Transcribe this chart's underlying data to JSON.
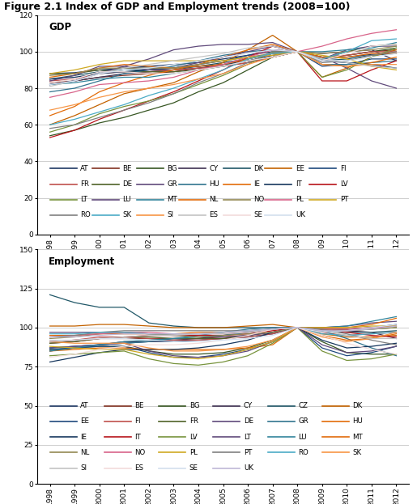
{
  "title": "Figure 2.1 Index of GDP and Employment trends (2008=100)",
  "years": [
    1998,
    1999,
    2000,
    2001,
    2002,
    2003,
    2004,
    2005,
    2006,
    2007,
    2008,
    2009,
    2010,
    2011,
    2012
  ],
  "gdp_label": "GDP",
  "emp_label": "Employment",
  "gdp_ylim": [
    0,
    120
  ],
  "gdp_yticks": [
    0,
    20,
    40,
    60,
    80,
    100,
    120
  ],
  "emp_ylim": [
    0,
    150
  ],
  "emp_yticks": [
    0,
    25,
    50,
    75,
    100,
    125,
    150
  ],
  "gdp_series": {
    "AT": {
      "color": "#1F3864",
      "data": [
        88,
        88.5,
        90,
        91,
        92,
        93,
        94,
        96,
        98,
        100,
        100,
        96,
        97,
        98.5,
        99
      ]
    },
    "BE": {
      "color": "#833223",
      "data": [
        83,
        84,
        86,
        87,
        88,
        89,
        91,
        92,
        94,
        97,
        100,
        97,
        98,
        100,
        101
      ]
    },
    "BG": {
      "color": "#375623",
      "data": [
        54,
        57,
        61,
        64,
        68,
        72,
        78,
        83,
        90,
        97,
        100,
        97,
        98,
        100,
        102
      ]
    },
    "CY": {
      "color": "#403152",
      "data": [
        82,
        84,
        86,
        88,
        89,
        90,
        91,
        93,
        95,
        98,
        100,
        99,
        100,
        101,
        95
      ]
    },
    "DK": {
      "color": "#215868",
      "data": [
        85,
        87,
        89,
        90,
        90,
        90,
        92,
        94,
        96,
        99,
        100,
        95,
        96,
        98,
        99
      ]
    },
    "EE": {
      "color": "#C36200",
      "data": [
        60,
        65,
        71,
        77,
        80,
        83,
        89,
        94,
        101,
        109,
        100,
        86,
        91,
        97,
        101
      ]
    },
    "FI": {
      "color": "#1F497D",
      "data": [
        82,
        84,
        89,
        91,
        91,
        91,
        93,
        95,
        98,
        101,
        100,
        92,
        93,
        96,
        96
      ]
    },
    "FR": {
      "color": "#C0504D",
      "data": [
        84,
        85,
        88,
        89,
        89,
        90,
        91,
        92,
        94,
        97,
        100,
        97,
        98,
        100,
        100
      ]
    },
    "DE": {
      "color": "#4F6228",
      "data": [
        88,
        88,
        90,
        89,
        89,
        89,
        90,
        92,
        96,
        99,
        100,
        96,
        100,
        103,
        104
      ]
    },
    "GR": {
      "color": "#604A7B",
      "data": [
        82,
        84,
        88,
        92,
        96,
        101,
        103,
        104,
        104,
        105,
        100,
        97,
        91,
        84,
        80
      ]
    },
    "HU": {
      "color": "#31748F",
      "data": [
        78,
        80,
        84,
        88,
        90,
        92,
        95,
        98,
        100,
        101,
        100,
        93,
        93,
        94,
        95
      ]
    },
    "IE": {
      "color": "#E36C09",
      "data": [
        65,
        70,
        78,
        83,
        87,
        90,
        93,
        97,
        101,
        104,
        100,
        93,
        92,
        94,
        97
      ]
    },
    "IT": {
      "color": "#17375E",
      "data": [
        85,
        86,
        88,
        89,
        90,
        91,
        92,
        93,
        95,
        97,
        100,
        95,
        94,
        93,
        91
      ]
    },
    "LV": {
      "color": "#B8131A",
      "data": [
        53,
        57,
        63,
        68,
        73,
        78,
        84,
        90,
        97,
        103,
        100,
        84,
        84,
        90,
        95
      ]
    },
    "LT": {
      "color": "#77933C",
      "data": [
        56,
        60,
        66,
        70,
        73,
        77,
        82,
        87,
        93,
        100,
        100,
        86,
        90,
        97,
        102
      ]
    },
    "LU": {
      "color": "#60497A",
      "data": [
        84,
        87,
        92,
        92,
        90,
        91,
        94,
        97,
        100,
        103,
        100,
        96,
        101,
        103,
        103
      ]
    },
    "MT": {
      "color": "#31849B",
      "data": [
        82,
        83,
        85,
        86,
        86,
        88,
        90,
        92,
        95,
        97,
        100,
        100,
        101,
        102,
        105
      ]
    },
    "NL": {
      "color": "#E26B0A",
      "data": [
        86,
        88,
        91,
        93,
        92,
        91,
        92,
        93,
        96,
        99,
        100,
        97,
        97,
        99,
        99
      ]
    },
    "NO": {
      "color": "#938953",
      "data": [
        87,
        88,
        91,
        91,
        91,
        91,
        93,
        95,
        97,
        99,
        100,
        99,
        100,
        101,
        103
      ]
    },
    "PL": {
      "color": "#D8648A",
      "data": [
        75,
        78,
        82,
        83,
        84,
        86,
        90,
        93,
        97,
        101,
        100,
        103,
        107,
        110,
        112
      ]
    },
    "PT": {
      "color": "#CFA922",
      "data": [
        88,
        90,
        93,
        95,
        95,
        95,
        95,
        95,
        97,
        98,
        100,
        98,
        96,
        92,
        90
      ]
    },
    "RO": {
      "color": "#808080",
      "data": [
        58,
        60,
        64,
        68,
        72,
        77,
        83,
        88,
        94,
        100,
        100,
        94,
        95,
        98,
        100
      ]
    },
    "SK": {
      "color": "#4BACC6",
      "data": [
        60,
        63,
        67,
        71,
        76,
        80,
        85,
        90,
        96,
        99,
        100,
        96,
        100,
        106,
        107
      ]
    },
    "SI": {
      "color": "#F79646",
      "data": [
        68,
        71,
        75,
        78,
        80,
        82,
        85,
        88,
        93,
        97,
        100,
        93,
        92,
        93,
        93
      ]
    },
    "ES": {
      "color": "#C4C4C4",
      "data": [
        81,
        84,
        88,
        91,
        93,
        95,
        97,
        99,
        102,
        103,
        100,
        96,
        94,
        92,
        91
      ]
    },
    "SE": {
      "color": "#F2DCDB",
      "data": [
        83,
        85,
        89,
        89,
        88,
        88,
        90,
        92,
        95,
        97,
        100,
        95,
        99,
        103,
        104
      ]
    },
    "UK": {
      "color": "#D3DFEE",
      "data": [
        82,
        84,
        88,
        90,
        91,
        93,
        95,
        97,
        99,
        101,
        100,
        95,
        95,
        97,
        99
      ]
    }
  },
  "emp_series": {
    "AT": {
      "color": "#1F3864",
      "data": [
        87,
        88,
        89,
        90,
        91,
        91,
        92,
        93,
        94,
        96,
        100,
        99,
        99,
        100,
        102
      ]
    },
    "BE": {
      "color": "#833223",
      "data": [
        90,
        91,
        93,
        93,
        93,
        93,
        93,
        94,
        95,
        97,
        100,
        99,
        99,
        100,
        101
      ]
    },
    "BG": {
      "color": "#375623",
      "data": [
        86,
        87,
        88,
        88,
        85,
        83,
        83,
        84,
        87,
        92,
        100,
        91,
        84,
        83,
        83
      ]
    },
    "CY": {
      "color": "#403152",
      "data": [
        85,
        87,
        89,
        91,
        91,
        92,
        93,
        95,
        97,
        99,
        100,
        99,
        98,
        97,
        93
      ]
    },
    "CZ": {
      "color": "#215868",
      "data": [
        121,
        116,
        113,
        113,
        103,
        101,
        100,
        100,
        100,
        100,
        100,
        98,
        97,
        97,
        98
      ]
    },
    "DK": {
      "color": "#C36200",
      "data": [
        101,
        101,
        102,
        102,
        101,
        100,
        100,
        100,
        101,
        102,
        100,
        96,
        94,
        94,
        95
      ]
    },
    "EE": {
      "color": "#1F497D",
      "data": [
        86,
        87,
        88,
        88,
        84,
        81,
        81,
        83,
        86,
        91,
        100,
        87,
        82,
        84,
        88
      ]
    },
    "FI": {
      "color": "#C0504D",
      "data": [
        91,
        92,
        94,
        94,
        93,
        92,
        92,
        93,
        94,
        96,
        100,
        97,
        95,
        96,
        97
      ]
    },
    "FR": {
      "color": "#4F6228",
      "data": [
        90,
        91,
        93,
        94,
        94,
        93,
        93,
        93,
        95,
        97,
        100,
        99,
        98,
        99,
        100
      ]
    },
    "DE": {
      "color": "#604A7B",
      "data": [
        97,
        97,
        97,
        97,
        96,
        95,
        94,
        94,
        95,
        97,
        100,
        100,
        101,
        103,
        104
      ]
    },
    "GR": {
      "color": "#31748F",
      "data": [
        87,
        88,
        89,
        90,
        91,
        93,
        95,
        97,
        99,
        100,
        100,
        98,
        93,
        87,
        82
      ]
    },
    "HU": {
      "color": "#E36C09",
      "data": [
        85,
        86,
        87,
        87,
        86,
        86,
        86,
        86,
        87,
        89,
        100,
        95,
        92,
        93,
        96
      ]
    },
    "IE": {
      "color": "#17375E",
      "data": [
        78,
        81,
        84,
        86,
        86,
        86,
        87,
        89,
        92,
        97,
        100,
        92,
        87,
        88,
        90
      ]
    },
    "IT": {
      "color": "#B8131A",
      "data": [
        91,
        92,
        93,
        94,
        95,
        95,
        95,
        95,
        96,
        98,
        100,
        99,
        97,
        95,
        94
      ]
    },
    "LV": {
      "color": "#77933C",
      "data": [
        82,
        83,
        84,
        85,
        80,
        77,
        76,
        78,
        82,
        90,
        100,
        85,
        79,
        80,
        83
      ]
    },
    "LT": {
      "color": "#60497A",
      "data": [
        87,
        88,
        89,
        90,
        85,
        82,
        81,
        82,
        85,
        91,
        100,
        89,
        84,
        85,
        88
      ]
    },
    "LU": {
      "color": "#31849B",
      "data": [
        85,
        87,
        89,
        91,
        92,
        93,
        94,
        95,
        97,
        99,
        100,
        100,
        101,
        104,
        107
      ]
    },
    "MT": {
      "color": "#E26B0A",
      "data": [
        95,
        95,
        96,
        96,
        96,
        96,
        97,
        97,
        98,
        99,
        100,
        100,
        100,
        102,
        106
      ]
    },
    "NL": {
      "color": "#938953",
      "data": [
        93,
        94,
        96,
        97,
        96,
        95,
        94,
        95,
        96,
        97,
        100,
        99,
        98,
        99,
        100
      ]
    },
    "NO": {
      "color": "#D8648A",
      "data": [
        94,
        95,
        96,
        97,
        97,
        96,
        96,
        96,
        97,
        99,
        100,
        99,
        99,
        100,
        101
      ]
    },
    "PL": {
      "color": "#CFA922",
      "data": [
        88,
        87,
        86,
        86,
        83,
        81,
        80,
        82,
        86,
        91,
        100,
        100,
        100,
        101,
        101
      ]
    },
    "PT": {
      "color": "#808080",
      "data": [
        94,
        95,
        97,
        98,
        98,
        98,
        98,
        98,
        98,
        99,
        100,
        99,
        96,
        92,
        89
      ]
    },
    "RO": {
      "color": "#4BACC6",
      "data": [
        96,
        96,
        97,
        97,
        96,
        96,
        96,
        97,
        98,
        99,
        100,
        96,
        95,
        96,
        97
      ]
    },
    "SK": {
      "color": "#F79646",
      "data": [
        91,
        90,
        90,
        90,
        87,
        85,
        85,
        86,
        88,
        92,
        100,
        94,
        91,
        93,
        97
      ]
    },
    "SI": {
      "color": "#C4C4C4",
      "data": [
        91,
        92,
        93,
        94,
        95,
        95,
        96,
        96,
        97,
        99,
        100,
        98,
        95,
        93,
        93
      ]
    },
    "ES": {
      "color": "#F2DCDB",
      "data": [
        81,
        83,
        86,
        88,
        89,
        89,
        90,
        92,
        95,
        99,
        100,
        95,
        90,
        86,
        83
      ]
    },
    "SE": {
      "color": "#D3DFEE",
      "data": [
        92,
        92,
        93,
        93,
        92,
        91,
        91,
        92,
        93,
        95,
        100,
        97,
        98,
        100,
        102
      ]
    },
    "UK": {
      "color": "#BFB7D7",
      "data": [
        94,
        94,
        95,
        96,
        96,
        96,
        96,
        97,
        98,
        99,
        100,
        98,
        98,
        99,
        101
      ]
    }
  },
  "gdp_legend_rows": [
    [
      "AT",
      "BE",
      "BG",
      "CY",
      "DK",
      "EE",
      "FI"
    ],
    [
      "FR",
      "DE",
      "GR",
      "HU",
      "IE",
      "IT",
      "LV"
    ],
    [
      "LT",
      "LU",
      "MT",
      "NL",
      "NO",
      "PL",
      "PT"
    ],
    [
      "RO",
      "SK",
      "SI",
      "ES",
      "SE",
      "UK"
    ]
  ],
  "emp_legend_rows": [
    [
      "AT",
      "BE",
      "BG",
      "CY",
      "CZ",
      "DK"
    ],
    [
      "EE",
      "FI",
      "FR",
      "DE",
      "GR",
      "HU"
    ],
    [
      "IE",
      "IT",
      "LV",
      "LT",
      "LU",
      "MT"
    ],
    [
      "NL",
      "NO",
      "PL",
      "PT",
      "RO",
      "SK"
    ],
    [
      "SI",
      "ES",
      "SE",
      "UK"
    ]
  ]
}
